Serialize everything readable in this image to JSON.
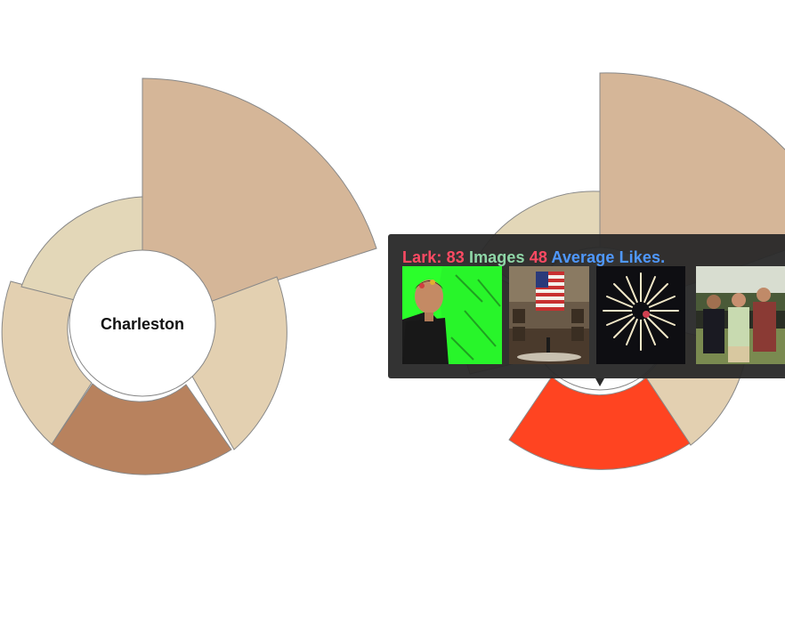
{
  "chart_data": [
    {
      "type": "polar-area",
      "center_label": "Charleston",
      "segments": [
        {
          "start_deg": 0,
          "end_deg": 72,
          "radius_rank": 3,
          "color": "#d5b698"
        },
        {
          "start_deg": 108,
          "end_deg": 162,
          "radius_rank": 1,
          "color": "#b8825e"
        },
        {
          "start_deg": 252,
          "end_deg": 298,
          "radius_rank": 1,
          "color": "#e3d7b8"
        },
        {
          "start_deg": 162,
          "end_deg": 252,
          "radius_rank": 1,
          "color": "#e3d0b1"
        },
        {
          "start_deg": 298,
          "end_deg": 360,
          "radius_rank": 1,
          "color": "#e3d7b8"
        },
        {
          "start_deg": 72,
          "end_deg": 108,
          "radius_rank": 1,
          "color": "#e3d0b1"
        }
      ]
    },
    {
      "type": "polar-area",
      "center_label": "",
      "highlight_color": "#ff4421"
    }
  ],
  "tooltip": {
    "name": "Lark:",
    "images_count": "83",
    "images_label": "Images",
    "likes_count": "48",
    "likes_label": "Average Likes.",
    "colors": {
      "name": "#ff4a63",
      "images_count": "#ff4a63",
      "images_label": "#8fd6a7",
      "likes_count": "#ff4a63",
      "likes_label": "#4f98ff"
    },
    "thumbnails": [
      {
        "icon": "selfie-green-screen-photo"
      },
      {
        "icon": "flag-hall-photo"
      },
      {
        "icon": "fireworks-photo"
      },
      {
        "icon": "group-outdoor-photo"
      }
    ]
  }
}
